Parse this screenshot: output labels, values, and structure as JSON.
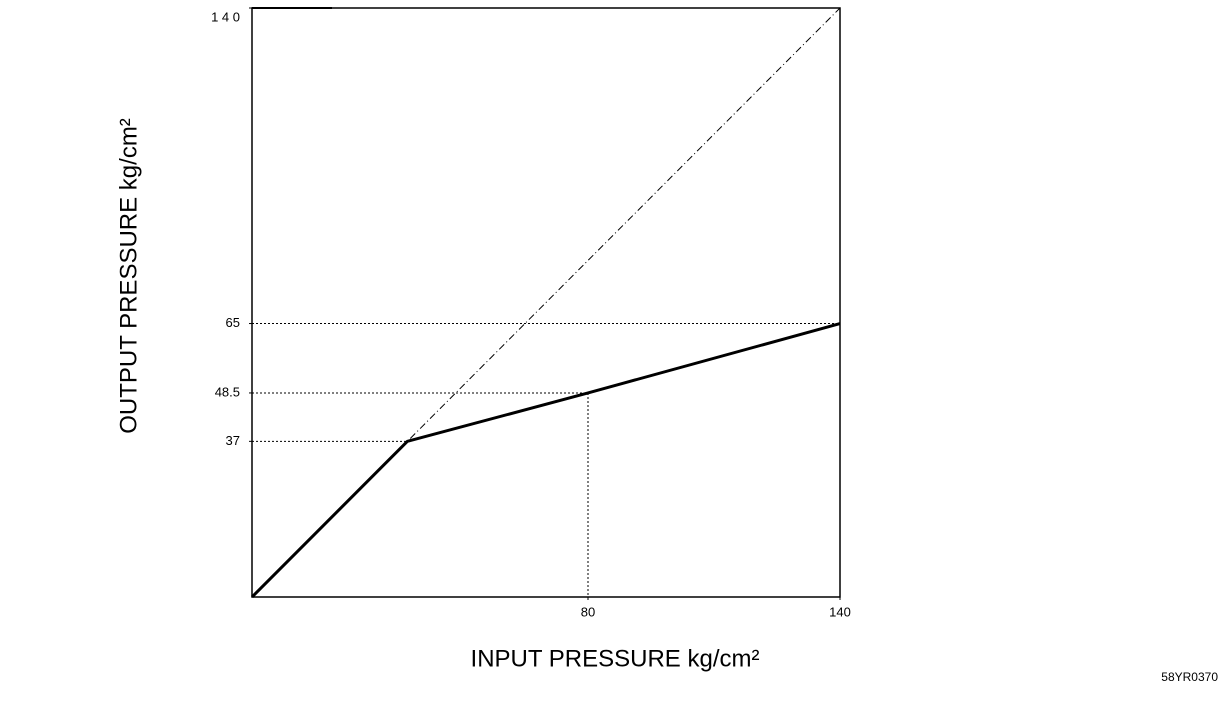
{
  "chart_data": {
    "type": "line",
    "xlabel": "INPUT PRESSURE kg/cm²",
    "ylabel": "OUTPUT PRESSURE kg/cm²",
    "code": "58YR0370",
    "xlim": [
      0,
      140
    ],
    "ylim": [
      0,
      140
    ],
    "xticks": [
      80,
      140
    ],
    "yticks": [
      37,
      48.5,
      65,
      {
        "value": 140,
        "label": "1 4 0"
      }
    ],
    "series": [
      {
        "color": "#000000",
        "style": "dashdot",
        "x": [
          0,
          140
        ],
        "values": [
          0,
          140
        ]
      },
      {
        "color": "#000000",
        "style": "solid",
        "x": [
          0,
          37,
          80,
          140
        ],
        "values": [
          0,
          37,
          48.5,
          65
        ]
      }
    ]
  }
}
